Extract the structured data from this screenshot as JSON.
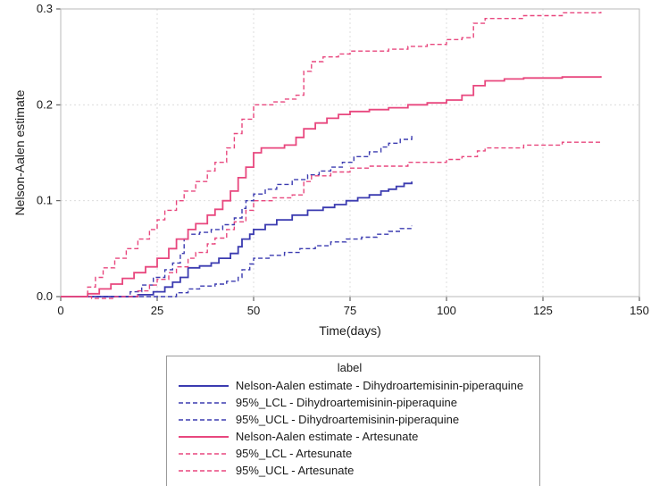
{
  "colors": {
    "dihydroartemisinin_piperaquine": "#3b3bb0",
    "artesunate": "#e8477e",
    "gridline": "#dcdcdc",
    "frame": "#b9b9b9",
    "text": "#1a1a1a"
  },
  "chart_data": {
    "type": "line",
    "step": "step-after",
    "title": "",
    "xlabel": "Time(days)",
    "ylabel": "Nelson-Aalen estimate",
    "xlim": [
      0,
      150
    ],
    "ylim": [
      0.0,
      0.3
    ],
    "x_ticks": [
      0,
      25,
      50,
      75,
      100,
      125,
      150
    ],
    "x_tick_labels": [
      "0",
      "25",
      "50",
      "75",
      "100",
      "125",
      "150"
    ],
    "y_ticks": [
      0.0,
      0.1,
      0.2,
      0.3
    ],
    "y_tick_labels": [
      "0.0",
      "0.1",
      "0.2",
      "0.3"
    ],
    "grid": true,
    "legend_position": "bottom",
    "legend_title": "label",
    "series": [
      {
        "name": "Nelson-Aalen estimate - Dihydroartemisinin-piperaquine",
        "color": "#3b3bb0",
        "dash": "solid",
        "points": [
          [
            0,
            0
          ],
          [
            20,
            0.002
          ],
          [
            24,
            0.005
          ],
          [
            27,
            0.01
          ],
          [
            29,
            0.015
          ],
          [
            31,
            0.02
          ],
          [
            33,
            0.03
          ],
          [
            36,
            0.032
          ],
          [
            39,
            0.035
          ],
          [
            41,
            0.04
          ],
          [
            44,
            0.045
          ],
          [
            46,
            0.052
          ],
          [
            47,
            0.06
          ],
          [
            49,
            0.065
          ],
          [
            50,
            0.07
          ],
          [
            53,
            0.075
          ],
          [
            56,
            0.08
          ],
          [
            60,
            0.085
          ],
          [
            64,
            0.09
          ],
          [
            68,
            0.093
          ],
          [
            71,
            0.096
          ],
          [
            74,
            0.1
          ],
          [
            77,
            0.103
          ],
          [
            80,
            0.106
          ],
          [
            83,
            0.11
          ],
          [
            85,
            0.112
          ],
          [
            87,
            0.115
          ],
          [
            89,
            0.118
          ],
          [
            91,
            0.12
          ]
        ]
      },
      {
        "name": "95%_LCL - Dihydroartemisinin-piperaquine",
        "color": "#3b3bb0",
        "dash": "dashed",
        "points": [
          [
            0,
            0
          ],
          [
            28,
            0
          ],
          [
            30,
            0.004
          ],
          [
            33,
            0.008
          ],
          [
            36,
            0.011
          ],
          [
            40,
            0.013
          ],
          [
            43,
            0.016
          ],
          [
            46,
            0.02
          ],
          [
            47,
            0.028
          ],
          [
            49,
            0.034
          ],
          [
            50,
            0.04
          ],
          [
            54,
            0.043
          ],
          [
            58,
            0.046
          ],
          [
            62,
            0.05
          ],
          [
            66,
            0.053
          ],
          [
            70,
            0.057
          ],
          [
            74,
            0.06
          ],
          [
            78,
            0.062
          ],
          [
            82,
            0.065
          ],
          [
            85,
            0.068
          ],
          [
            88,
            0.071
          ],
          [
            91,
            0.074
          ]
        ]
      },
      {
        "name": "95%_UCL - Dihydroartemisinin-piperaquine",
        "color": "#3b3bb0",
        "dash": "dashed",
        "points": [
          [
            0,
            0
          ],
          [
            18,
            0.005
          ],
          [
            21,
            0.012
          ],
          [
            24,
            0.02
          ],
          [
            27,
            0.028
          ],
          [
            29,
            0.035
          ],
          [
            31,
            0.045
          ],
          [
            32,
            0.06
          ],
          [
            33,
            0.065
          ],
          [
            36,
            0.067
          ],
          [
            39,
            0.07
          ],
          [
            42,
            0.075
          ],
          [
            45,
            0.082
          ],
          [
            47,
            0.092
          ],
          [
            48,
            0.1
          ],
          [
            50,
            0.107
          ],
          [
            53,
            0.112
          ],
          [
            56,
            0.117
          ],
          [
            60,
            0.122
          ],
          [
            64,
            0.127
          ],
          [
            67,
            0.131
          ],
          [
            70,
            0.135
          ],
          [
            73,
            0.14
          ],
          [
            76,
            0.146
          ],
          [
            80,
            0.151
          ],
          [
            83,
            0.156
          ],
          [
            85,
            0.16
          ],
          [
            88,
            0.164
          ],
          [
            91,
            0.168
          ]
        ]
      },
      {
        "name": "Nelson-Aalen estimate - Artesunate",
        "color": "#e8477e",
        "dash": "solid",
        "points": [
          [
            0,
            0
          ],
          [
            7,
            0.003
          ],
          [
            10,
            0.008
          ],
          [
            13,
            0.013
          ],
          [
            16,
            0.019
          ],
          [
            19,
            0.025
          ],
          [
            22,
            0.031
          ],
          [
            25,
            0.04
          ],
          [
            28,
            0.05
          ],
          [
            30,
            0.06
          ],
          [
            33,
            0.07
          ],
          [
            35,
            0.076
          ],
          [
            38,
            0.085
          ],
          [
            40,
            0.091
          ],
          [
            42,
            0.1
          ],
          [
            44,
            0.11
          ],
          [
            46,
            0.124
          ],
          [
            48,
            0.135
          ],
          [
            50,
            0.15
          ],
          [
            52,
            0.155
          ],
          [
            58,
            0.158
          ],
          [
            61,
            0.166
          ],
          [
            63,
            0.175
          ],
          [
            66,
            0.181
          ],
          [
            69,
            0.186
          ],
          [
            72,
            0.19
          ],
          [
            75,
            0.193
          ],
          [
            80,
            0.195
          ],
          [
            85,
            0.197
          ],
          [
            90,
            0.2
          ],
          [
            95,
            0.202
          ],
          [
            100,
            0.205
          ],
          [
            104,
            0.21
          ],
          [
            107,
            0.22
          ],
          [
            110,
            0.225
          ],
          [
            115,
            0.227
          ],
          [
            120,
            0.228
          ],
          [
            130,
            0.229
          ],
          [
            140,
            0.23
          ]
        ]
      },
      {
        "name": "95%_LCL - Artesunate",
        "color": "#e8477e",
        "dash": "dashed",
        "points": [
          [
            0,
            0
          ],
          [
            8,
            -0.002
          ],
          [
            14,
            0
          ],
          [
            20,
            0.006
          ],
          [
            23,
            0.012
          ],
          [
            25,
            0.018
          ],
          [
            28,
            0.025
          ],
          [
            30,
            0.031
          ],
          [
            33,
            0.04
          ],
          [
            35,
            0.046
          ],
          [
            38,
            0.055
          ],
          [
            40,
            0.061
          ],
          [
            43,
            0.07
          ],
          [
            45,
            0.078
          ],
          [
            48,
            0.09
          ],
          [
            50,
            0.1
          ],
          [
            55,
            0.103
          ],
          [
            60,
            0.106
          ],
          [
            63,
            0.12
          ],
          [
            65,
            0.126
          ],
          [
            70,
            0.13
          ],
          [
            75,
            0.134
          ],
          [
            80,
            0.136
          ],
          [
            90,
            0.14
          ],
          [
            100,
            0.143
          ],
          [
            104,
            0.146
          ],
          [
            108,
            0.152
          ],
          [
            110,
            0.155
          ],
          [
            120,
            0.158
          ],
          [
            130,
            0.161
          ],
          [
            140,
            0.163
          ]
        ]
      },
      {
        "name": "95%_UCL - Artesunate",
        "color": "#e8477e",
        "dash": "dashed",
        "points": [
          [
            0,
            0
          ],
          [
            7,
            0.01
          ],
          [
            9,
            0.02
          ],
          [
            11,
            0.03
          ],
          [
            14,
            0.04
          ],
          [
            17,
            0.05
          ],
          [
            20,
            0.06
          ],
          [
            23,
            0.07
          ],
          [
            25,
            0.08
          ],
          [
            27,
            0.09
          ],
          [
            30,
            0.1
          ],
          [
            32,
            0.11
          ],
          [
            35,
            0.12
          ],
          [
            38,
            0.131
          ],
          [
            40,
            0.14
          ],
          [
            43,
            0.155
          ],
          [
            45,
            0.17
          ],
          [
            47,
            0.185
          ],
          [
            50,
            0.2
          ],
          [
            55,
            0.203
          ],
          [
            58,
            0.206
          ],
          [
            61,
            0.21
          ],
          [
            63,
            0.235
          ],
          [
            65,
            0.245
          ],
          [
            68,
            0.25
          ],
          [
            72,
            0.253
          ],
          [
            75,
            0.256
          ],
          [
            85,
            0.258
          ],
          [
            90,
            0.261
          ],
          [
            95,
            0.263
          ],
          [
            100,
            0.268
          ],
          [
            104,
            0.27
          ],
          [
            107,
            0.285
          ],
          [
            110,
            0.29
          ],
          [
            120,
            0.293
          ],
          [
            130,
            0.296
          ],
          [
            140,
            0.297
          ]
        ]
      }
    ]
  }
}
